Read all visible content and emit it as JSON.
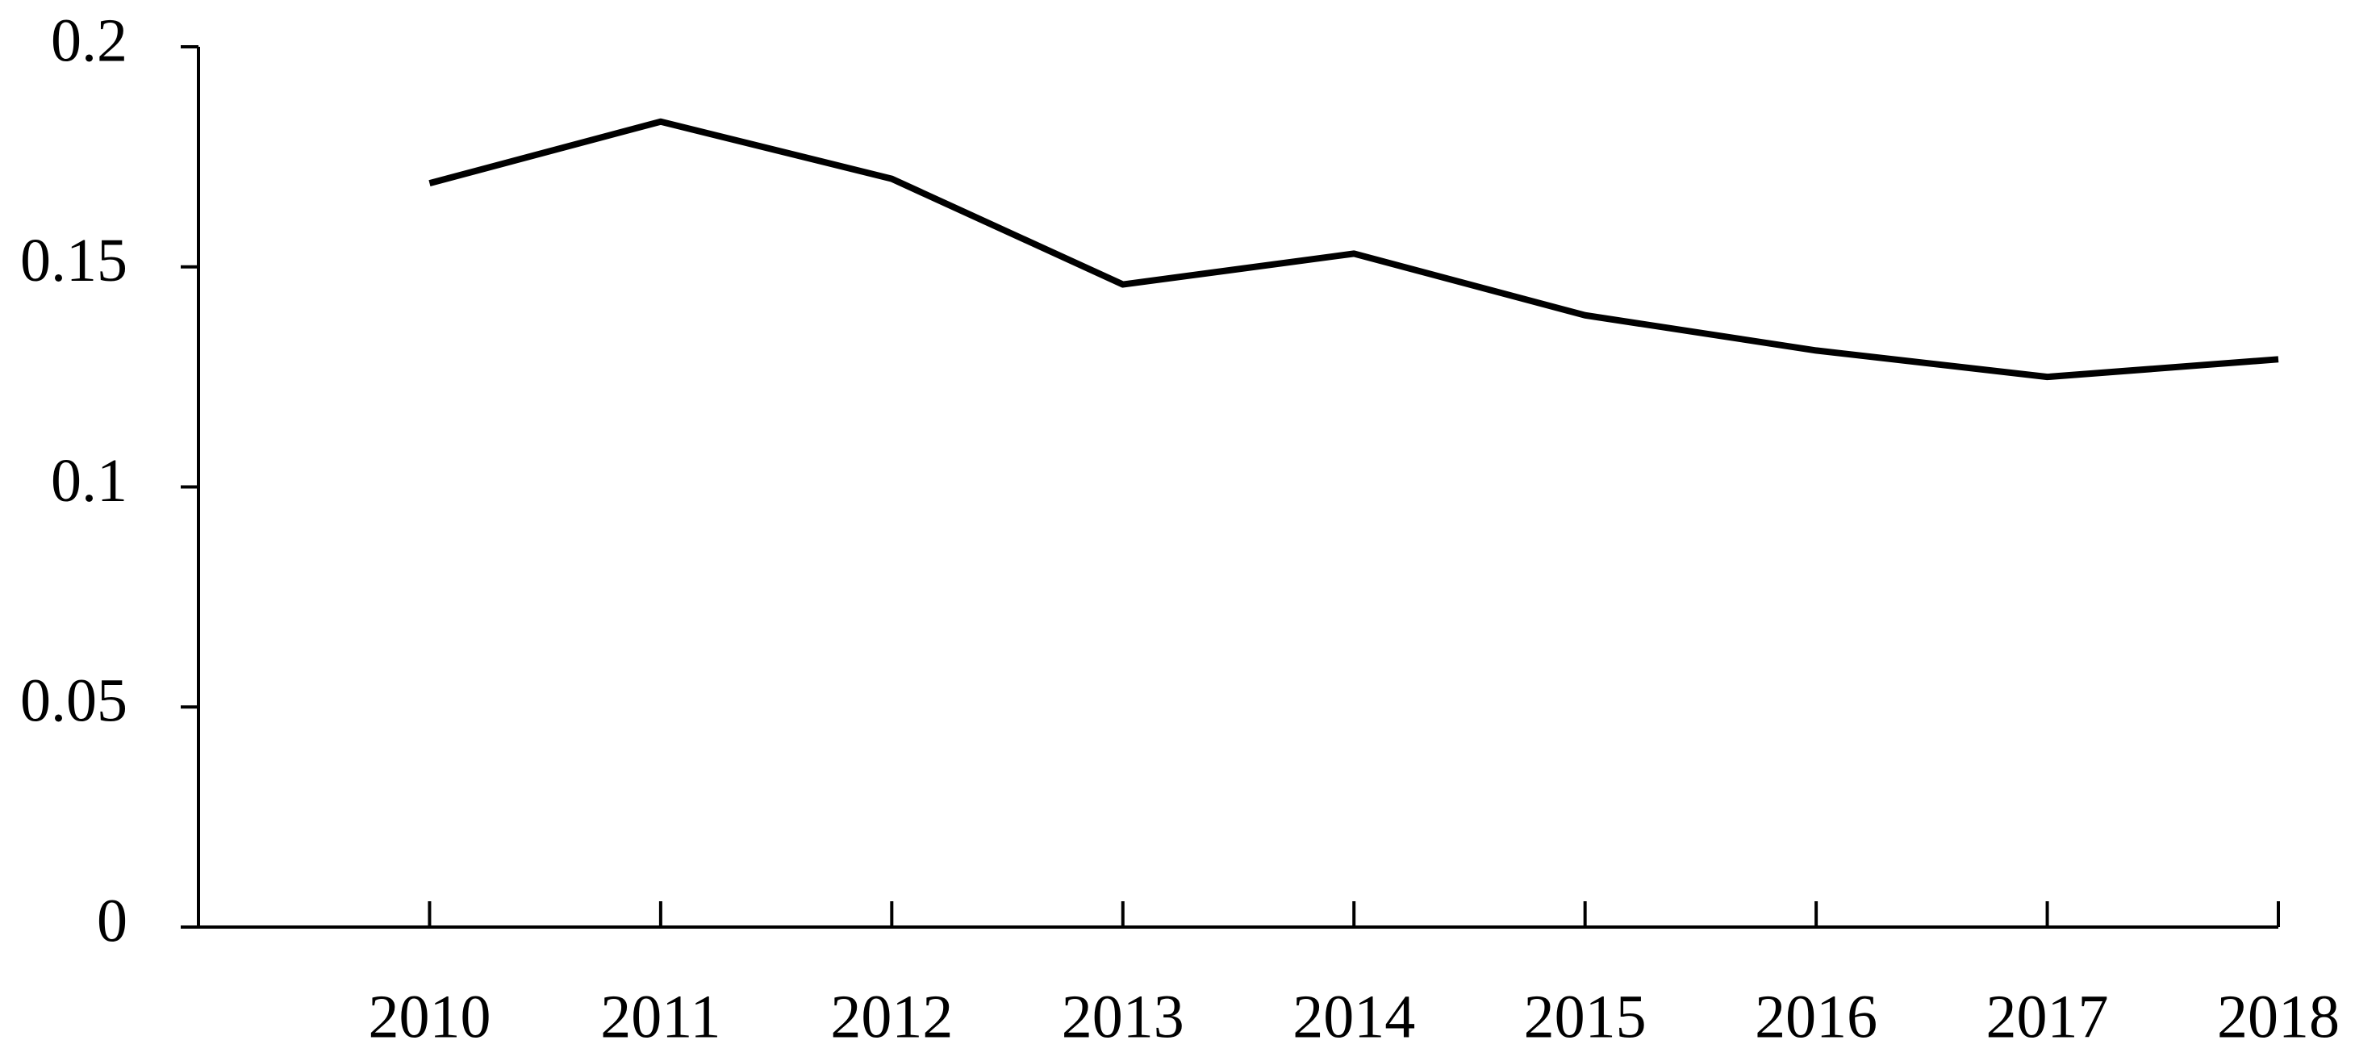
{
  "chart_data": {
    "type": "line",
    "x": [
      2010,
      2011,
      2012,
      2013,
      2014,
      2015,
      2016,
      2017,
      2018
    ],
    "values": [
      0.169,
      0.183,
      0.17,
      0.146,
      0.153,
      0.139,
      0.131,
      0.125,
      0.129
    ],
    "color": "#000000",
    "xlim": [
      2009,
      2018
    ],
    "xticks": [
      2010,
      2011,
      2012,
      2013,
      2014,
      2015,
      2016,
      2017,
      2018
    ],
    "ylim": [
      0,
      0.2
    ],
    "yticks": [
      0,
      0.05,
      0.1,
      0.15,
      0.2
    ],
    "grid": false
  }
}
